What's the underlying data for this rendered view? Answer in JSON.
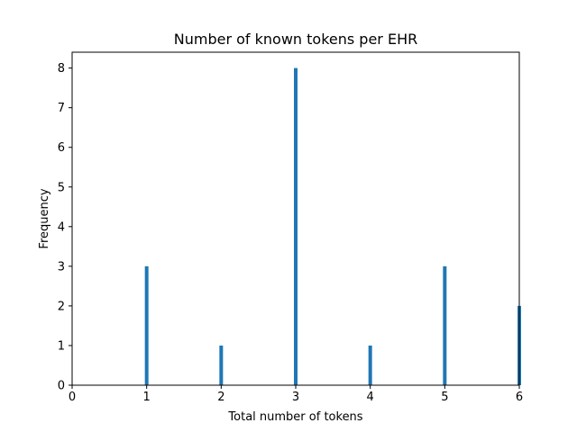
{
  "chart_data": {
    "type": "bar",
    "title": "Number of known tokens per EHR",
    "xlabel": "Total number of tokens",
    "ylabel": "Frequency",
    "xlim": [
      0,
      6
    ],
    "ylim": [
      0,
      8.4
    ],
    "xticks": [
      0,
      1,
      2,
      3,
      4,
      5,
      6
    ],
    "yticks": [
      0,
      1,
      2,
      3,
      4,
      5,
      6,
      7,
      8
    ],
    "grid": false,
    "bar_color": "#1f77b4",
    "series": [
      {
        "x": [
          1,
          2,
          3,
          4,
          5,
          6
        ],
        "values": [
          3,
          1,
          8,
          1,
          3,
          2
        ]
      }
    ]
  }
}
